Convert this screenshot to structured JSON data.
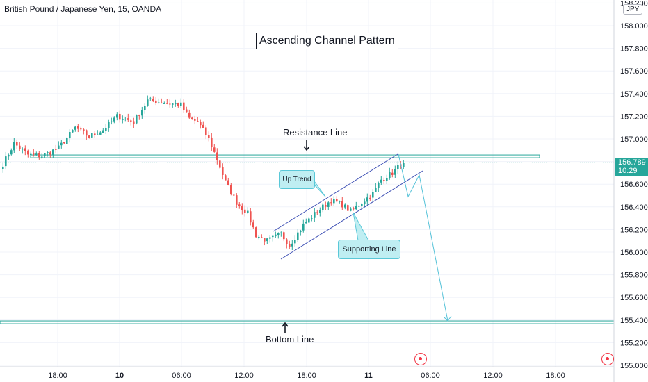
{
  "header": {
    "symbol_title": "British Pound / Japanese Yen, 15, OANDA",
    "currency": "JPY"
  },
  "annotations": {
    "pattern_title": "Ascending Channel Pattern",
    "resistance_label": "Resistance Line",
    "bottom_label": "Bottom Line",
    "up_trend_label": "Up Trend",
    "supporting_label": "Supporting Line"
  },
  "price_tag": {
    "price": "156.789",
    "countdown": "10:29"
  },
  "colors": {
    "up": "#26a69a",
    "down": "#ef5350",
    "hline": "#26a69a",
    "channel": "#3f51b5",
    "projection": "#55c2d8",
    "event": "#f23645"
  },
  "icons": [
    "down-arrow-icon",
    "up-arrow-icon",
    "economic-event-icon"
  ],
  "chart_data": {
    "type": "candlestick",
    "ylim": [
      155.0,
      158.2
    ],
    "y_ticks": [
      "158.200",
      "158.000",
      "157.800",
      "157.600",
      "157.400",
      "157.200",
      "157.000",
      "156.800",
      "156.600",
      "156.400",
      "156.200",
      "156.000",
      "155.800",
      "155.600",
      "155.400",
      "155.200",
      "155.000"
    ],
    "x_ticks": [
      "18:00",
      "10",
      "06:00",
      "12:00",
      "18:00",
      "11",
      "06:00",
      "12:00",
      "18:00"
    ],
    "series": [
      {
        "type": "candlestick",
        "anchors": [
          {
            "bar": 0,
            "price": 156.78
          },
          {
            "bar": 4,
            "price": 156.96
          },
          {
            "bar": 9,
            "price": 156.86
          },
          {
            "bar": 14,
            "price": 156.85
          },
          {
            "bar": 20,
            "price": 156.92
          },
          {
            "bar": 26,
            "price": 157.1
          },
          {
            "bar": 31,
            "price": 157.02
          },
          {
            "bar": 36,
            "price": 157.08
          },
          {
            "bar": 41,
            "price": 157.2
          },
          {
            "bar": 47,
            "price": 157.15
          },
          {
            "bar": 52,
            "price": 157.34
          },
          {
            "bar": 58,
            "price": 157.32
          },
          {
            "bar": 64,
            "price": 157.3
          },
          {
            "bar": 67,
            "price": 157.18
          },
          {
            "bar": 70,
            "price": 157.15
          },
          {
            "bar": 74,
            "price": 157.0
          },
          {
            "bar": 77,
            "price": 156.82
          },
          {
            "bar": 80,
            "price": 156.62
          },
          {
            "bar": 84,
            "price": 156.44
          },
          {
            "bar": 88,
            "price": 156.34
          },
          {
            "bar": 91,
            "price": 156.15
          },
          {
            "bar": 95,
            "price": 156.1
          },
          {
            "bar": 100,
            "price": 156.16
          },
          {
            "bar": 103,
            "price": 156.06
          },
          {
            "bar": 108,
            "price": 156.24
          },
          {
            "bar": 113,
            "price": 156.36
          },
          {
            "bar": 118,
            "price": 156.46
          },
          {
            "bar": 122,
            "price": 156.42
          },
          {
            "bar": 125,
            "price": 156.36
          },
          {
            "bar": 129,
            "price": 156.44
          },
          {
            "bar": 133,
            "price": 156.52
          },
          {
            "bar": 136,
            "price": 156.64
          },
          {
            "bar": 140,
            "price": 156.7
          },
          {
            "bar": 143,
            "price": 156.78
          },
          {
            "bar": 144,
            "price": 156.79
          }
        ]
      }
    ],
    "horizontal_lines": [
      {
        "label": "Resistance Line",
        "price": 156.84
      },
      {
        "label": "Bottom Line",
        "price": 155.38
      }
    ],
    "current_price": 156.789
  }
}
